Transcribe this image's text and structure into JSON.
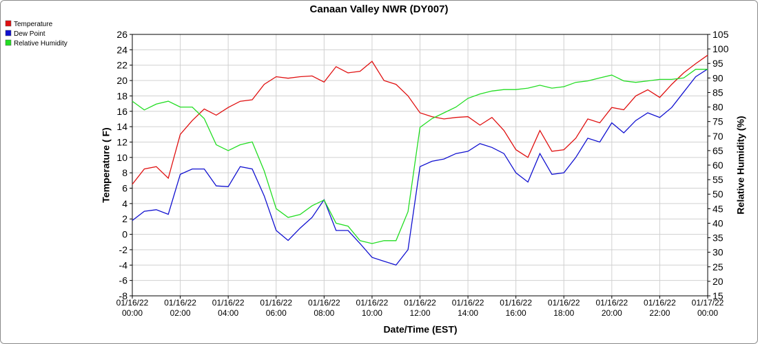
{
  "chart_data": {
    "type": "line",
    "title": "Canaan Valley NWR (DY007)",
    "x_label": "Date/Time (EST)",
    "y_label": "Temperature ( F)",
    "y2_label": "Relative Humidity (%)",
    "x": [
      0,
      0.5,
      1,
      1.5,
      2,
      2.5,
      3,
      3.5,
      4,
      4.5,
      5,
      5.5,
      6,
      6.5,
      7,
      7.5,
      8,
      8.5,
      9,
      9.5,
      10,
      10.5,
      11,
      11.5,
      12,
      12.5,
      13,
      13.5,
      14,
      14.5,
      15,
      15.5,
      16,
      16.5,
      17,
      17.5,
      18,
      18.5,
      19,
      19.5,
      20,
      20.5,
      21,
      21.5,
      22,
      22.5,
      23,
      23.5,
      24
    ],
    "xlim": [
      0,
      24
    ],
    "xticks": [
      {
        "value": 0,
        "label": "01/16/22\n00:00"
      },
      {
        "value": 2,
        "label": "01/16/22\n02:00"
      },
      {
        "value": 4,
        "label": "01/16/22\n04:00"
      },
      {
        "value": 6,
        "label": "01/16/22\n06:00"
      },
      {
        "value": 8,
        "label": "01/16/22\n08:00"
      },
      {
        "value": 10,
        "label": "01/16/22\n10:00"
      },
      {
        "value": 12,
        "label": "01/16/22\n12:00"
      },
      {
        "value": 14,
        "label": "01/16/22\n14:00"
      },
      {
        "value": 16,
        "label": "01/16/22\n16:00"
      },
      {
        "value": 18,
        "label": "01/16/22\n18:00"
      },
      {
        "value": 20,
        "label": "01/16/22\n20:00"
      },
      {
        "value": 22,
        "label": "01/16/22\n22:00"
      },
      {
        "value": 24,
        "label": "01/17/22\n00:00"
      }
    ],
    "ylim": [
      -8,
      26
    ],
    "yticks": [
      -8,
      -6,
      -4,
      -2,
      0,
      2,
      4,
      6,
      8,
      10,
      12,
      14,
      16,
      18,
      20,
      22,
      24,
      26
    ],
    "y2lim": [
      15,
      105
    ],
    "y2ticks": [
      15,
      20,
      25,
      30,
      35,
      40,
      45,
      50,
      55,
      60,
      65,
      70,
      75,
      80,
      85,
      90,
      95,
      100,
      105
    ],
    "grid": true,
    "legend": "top-left",
    "series": [
      {
        "name": "Temperature",
        "color": "#e01010",
        "values": [
          6.5,
          8.5,
          8.8,
          7.3,
          13.0,
          14.8,
          16.3,
          15.5,
          16.5,
          17.3,
          17.5,
          19.5,
          20.5,
          20.3,
          20.5,
          20.6,
          19.8,
          21.8,
          21.0,
          21.2,
          22.5,
          20.0,
          19.5,
          18.0,
          15.8,
          15.3,
          15.0,
          15.2,
          15.3,
          14.2,
          15.2,
          13.5,
          11.0,
          10.0,
          13.5,
          10.8,
          11.0,
          12.5,
          15.0,
          14.5,
          16.5,
          16.2,
          18.0,
          18.8,
          17.8,
          19.5,
          21.0,
          22.2,
          23.3
        ]
      },
      {
        "name": "Dew Point",
        "color": "#1010d0",
        "values": [
          1.8,
          3.0,
          3.2,
          2.6,
          7.8,
          8.5,
          8.5,
          6.3,
          6.2,
          8.8,
          8.5,
          5.0,
          0.5,
          -0.8,
          0.8,
          2.2,
          4.5,
          0.5,
          0.5,
          -1.2,
          -3.0,
          -3.5,
          -4.0,
          -2.0,
          8.8,
          9.5,
          9.8,
          10.5,
          10.8,
          11.8,
          11.3,
          10.5,
          8.0,
          6.8,
          10.5,
          7.8,
          8.0,
          10.0,
          12.5,
          12.0,
          14.5,
          13.2,
          14.8,
          15.8,
          15.2,
          16.5,
          18.5,
          20.5,
          21.5
        ]
      },
      {
        "name": "Relative Humidity",
        "color": "#22dd22",
        "axis": "y2",
        "values": [
          82,
          79,
          81,
          82,
          80,
          80,
          76,
          67,
          65,
          67,
          68,
          58,
          45,
          42,
          43,
          46,
          48,
          40,
          39,
          34,
          33,
          34,
          34,
          44,
          73,
          76,
          78,
          80,
          83,
          84.5,
          85.5,
          86,
          86,
          86.5,
          87.5,
          86.5,
          87,
          88.5,
          89,
          90,
          91,
          89,
          88.5,
          89,
          89.5,
          89.5,
          90,
          93,
          93
        ]
      }
    ]
  }
}
